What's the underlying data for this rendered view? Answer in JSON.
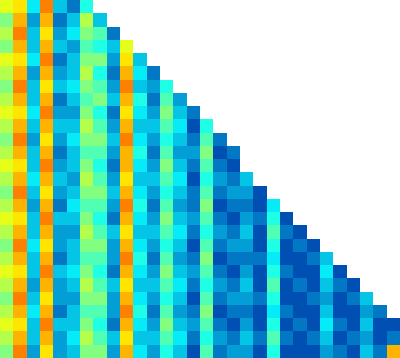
{
  "chart_data": {
    "type": "heatmap",
    "color": "Jet",
    "zlim": [
      0,
      1
    ],
    "tick_labels": false,
    "grid": false,
    "cells": [
      [
        0.6,
        0.65,
        0.35,
        0.75,
        0.3,
        0.2,
        0.4
      ],
      [
        0.5,
        0.7,
        0.25,
        0.7,
        0.2,
        0.3,
        0.55,
        0.3
      ],
      [
        0.55,
        0.75,
        0.3,
        0.65,
        0.25,
        0.35,
        0.5,
        0.45,
        0.2
      ],
      [
        0.5,
        0.7,
        0.3,
        0.7,
        0.3,
        0.25,
        0.45,
        0.4,
        0.3,
        0.6
      ],
      [
        0.6,
        0.65,
        0.35,
        0.75,
        0.2,
        0.3,
        0.5,
        0.5,
        0.25,
        0.65,
        0.3
      ],
      [
        0.55,
        0.7,
        0.25,
        0.7,
        0.25,
        0.3,
        0.55,
        0.4,
        0.2,
        0.7,
        0.35,
        0.2
      ],
      [
        0.5,
        0.75,
        0.3,
        0.65,
        0.3,
        0.35,
        0.5,
        0.45,
        0.25,
        0.75,
        0.3,
        0.25,
        0.4
      ],
      [
        0.55,
        0.7,
        0.3,
        0.7,
        0.2,
        0.3,
        0.45,
        0.5,
        0.3,
        0.7,
        0.4,
        0.2,
        0.45,
        0.25
      ],
      [
        0.6,
        0.65,
        0.35,
        0.75,
        0.25,
        0.25,
        0.5,
        0.4,
        0.2,
        0.65,
        0.35,
        0.25,
        0.5,
        0.3,
        0.2
      ],
      [
        0.55,
        0.7,
        0.3,
        0.7,
        0.3,
        0.3,
        0.55,
        0.45,
        0.25,
        0.7,
        0.3,
        0.3,
        0.45,
        0.35,
        0.15,
        0.4
      ],
      [
        0.5,
        0.75,
        0.25,
        0.65,
        0.25,
        0.35,
        0.5,
        0.5,
        0.3,
        0.75,
        0.35,
        0.25,
        0.4,
        0.3,
        0.2,
        0.45,
        0.2
      ],
      [
        0.55,
        0.7,
        0.3,
        0.7,
        0.2,
        0.3,
        0.45,
        0.45,
        0.25,
        0.7,
        0.4,
        0.2,
        0.45,
        0.25,
        0.25,
        0.5,
        0.15,
        0.2
      ],
      [
        0.6,
        0.65,
        0.3,
        0.75,
        0.25,
        0.3,
        0.5,
        0.4,
        0.2,
        0.7,
        0.35,
        0.25,
        0.5,
        0.3,
        0.2,
        0.45,
        0.2,
        0.15
      ],
      [
        0.55,
        0.7,
        0.35,
        0.7,
        0.3,
        0.25,
        0.55,
        0.45,
        0.25,
        0.65,
        0.3,
        0.3,
        0.45,
        0.35,
        0.15,
        0.4,
        0.25,
        0.2,
        0.3
      ],
      [
        0.5,
        0.75,
        0.3,
        0.65,
        0.25,
        0.3,
        0.5,
        0.5,
        0.3,
        0.7,
        0.35,
        0.25,
        0.4,
        0.3,
        0.2,
        0.45,
        0.2,
        0.25,
        0.25,
        0.15
      ],
      [
        0.55,
        0.7,
        0.25,
        0.7,
        0.2,
        0.35,
        0.45,
        0.45,
        0.25,
        0.75,
        0.4,
        0.2,
        0.45,
        0.25,
        0.2,
        0.5,
        0.15,
        0.2,
        0.2,
        0.15,
        0.35
      ],
      [
        0.6,
        0.65,
        0.3,
        0.75,
        0.3,
        0.3,
        0.5,
        0.4,
        0.2,
        0.7,
        0.35,
        0.25,
        0.5,
        0.3,
        0.25,
        0.45,
        0.2,
        0.15,
        0.25,
        0.2,
        0.4,
        0.15
      ],
      [
        0.55,
        0.7,
        0.3,
        0.7,
        0.25,
        0.25,
        0.55,
        0.45,
        0.3,
        0.65,
        0.3,
        0.3,
        0.45,
        0.35,
        0.2,
        0.4,
        0.25,
        0.2,
        0.3,
        0.15,
        0.45,
        0.2,
        0.15
      ],
      [
        0.5,
        0.75,
        0.35,
        0.65,
        0.25,
        0.3,
        0.5,
        0.5,
        0.25,
        0.7,
        0.35,
        0.25,
        0.4,
        0.3,
        0.15,
        0.45,
        0.2,
        0.25,
        0.25,
        0.15,
        0.4,
        0.15,
        0.2,
        0.15
      ],
      [
        0.55,
        0.7,
        0.3,
        0.7,
        0.2,
        0.3,
        0.45,
        0.45,
        0.25,
        0.75,
        0.4,
        0.2,
        0.45,
        0.25,
        0.2,
        0.5,
        0.15,
        0.2,
        0.2,
        0.2,
        0.35,
        0.15,
        0.15,
        0.2,
        0.3
      ],
      [
        0.6,
        0.65,
        0.3,
        0.75,
        0.3,
        0.35,
        0.5,
        0.4,
        0.2,
        0.7,
        0.35,
        0.25,
        0.5,
        0.3,
        0.25,
        0.45,
        0.2,
        0.15,
        0.25,
        0.15,
        0.4,
        0.2,
        0.15,
        0.15,
        0.35,
        0.15
      ],
      [
        0.55,
        0.7,
        0.25,
        0.7,
        0.25,
        0.3,
        0.55,
        0.45,
        0.3,
        0.65,
        0.3,
        0.3,
        0.45,
        0.35,
        0.2,
        0.4,
        0.25,
        0.2,
        0.3,
        0.15,
        0.45,
        0.15,
        0.2,
        0.15,
        0.3,
        0.2,
        0.15
      ],
      [
        0.5,
        0.75,
        0.3,
        0.65,
        0.25,
        0.25,
        0.5,
        0.5,
        0.25,
        0.7,
        0.35,
        0.25,
        0.4,
        0.3,
        0.15,
        0.45,
        0.2,
        0.25,
        0.25,
        0.2,
        0.4,
        0.15,
        0.15,
        0.2,
        0.25,
        0.15,
        0.2,
        0.3
      ],
      [
        0.55,
        0.7,
        0.35,
        0.7,
        0.2,
        0.3,
        0.45,
        0.45,
        0.25,
        0.75,
        0.4,
        0.2,
        0.45,
        0.25,
        0.2,
        0.5,
        0.15,
        0.2,
        0.2,
        0.15,
        0.35,
        0.2,
        0.15,
        0.15,
        0.3,
        0.15,
        0.15,
        0.25,
        0.2
      ],
      [
        0.6,
        0.65,
        0.3,
        0.75,
        0.3,
        0.3,
        0.5,
        0.4,
        0.2,
        0.7,
        0.35,
        0.25,
        0.5,
        0.3,
        0.25,
        0.45,
        0.2,
        0.15,
        0.25,
        0.15,
        0.4,
        0.15,
        0.2,
        0.15,
        0.35,
        0.2,
        0.15,
        0.3,
        0.15,
        0.15
      ],
      [
        0.55,
        0.7,
        0.3,
        0.7,
        0.25,
        0.35,
        0.55,
        0.45,
        0.3,
        0.65,
        0.3,
        0.3,
        0.45,
        0.35,
        0.2,
        0.4,
        0.25,
        0.2,
        0.3,
        0.2,
        0.45,
        0.2,
        0.15,
        0.2,
        0.3,
        0.15,
        0.2,
        0.25,
        0.15,
        0.2
      ],
      [
        0.5,
        0.75,
        0.25,
        0.65,
        0.25,
        0.3,
        0.5,
        0.5,
        0.25,
        0.7,
        0.35,
        0.25,
        0.4,
        0.3,
        0.15,
        0.45,
        0.2,
        0.25,
        0.25,
        0.15,
        0.4,
        0.15,
        0.15,
        0.15,
        0.25,
        0.2,
        0.15,
        0.3,
        0.2,
        0.7
      ]
    ]
  }
}
